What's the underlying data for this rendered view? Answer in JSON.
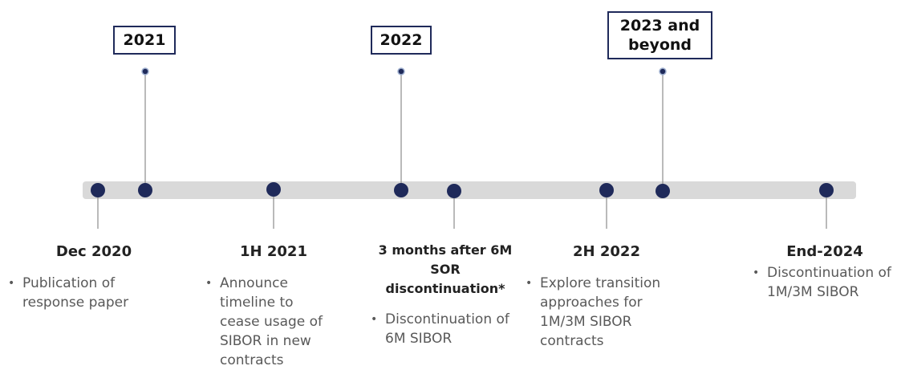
{
  "years": [
    {
      "label": "2021"
    },
    {
      "label": "2022"
    },
    {
      "label": "2023 and beyond"
    }
  ],
  "events": [
    {
      "title": "Dec 2020",
      "bullet": "Publication of response paper"
    },
    {
      "title": "1H 2021",
      "bullet": "Announce timeline to cease usage of SIBOR in new contracts"
    },
    {
      "title": "3 months after 6M SOR discontinuation*",
      "bullet": "Discontinuation of 6M SIBOR"
    },
    {
      "title": "2H 2022",
      "bullet": "Explore transition approaches for 1M/3M SIBOR contracts"
    },
    {
      "title": "End-2024",
      "bullet": "Discontinuation of 1M/3M SIBOR"
    }
  ]
}
